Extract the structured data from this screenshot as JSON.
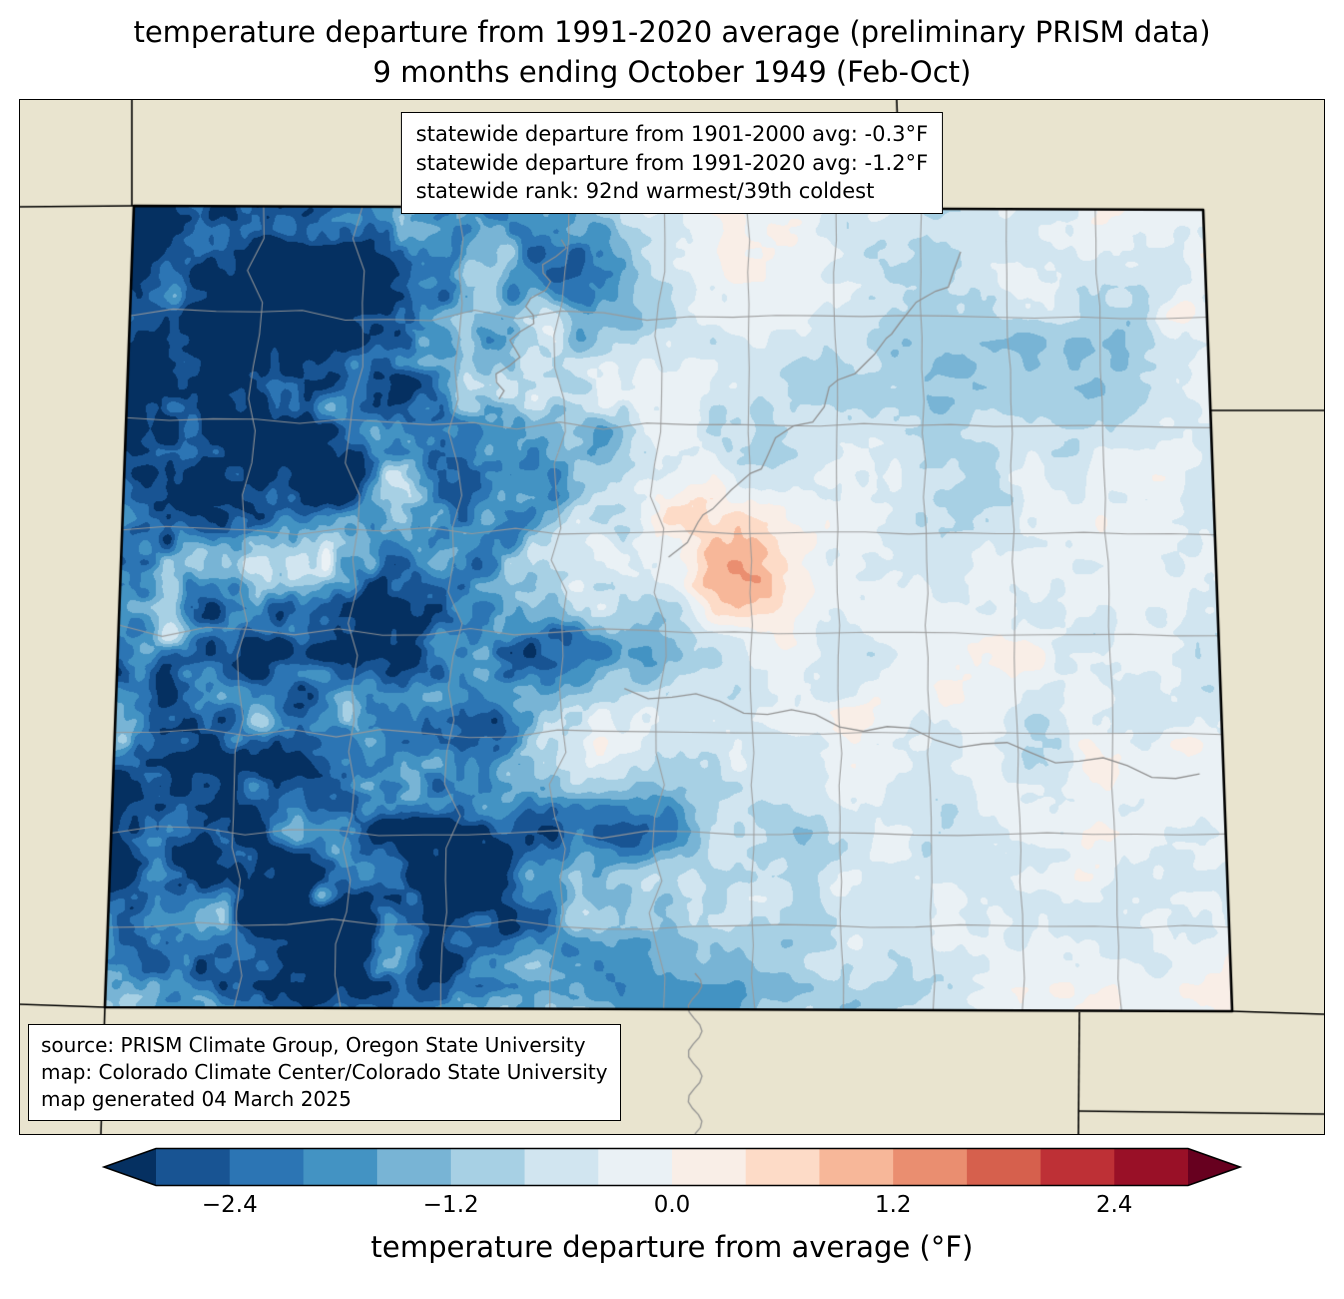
{
  "title": {
    "line1": "temperature departure from 1991-2020 average (preliminary PRISM data)",
    "line2": "9 months ending October 1949 (Feb-Oct)"
  },
  "stats_box": {
    "line1": "statewide departure from 1901-2000 avg: -0.3°F",
    "line2": "statewide departure from 1991-2020 avg: -1.2°F",
    "line3": "statewide rank: 92nd warmest/39th coldest"
  },
  "credits_box": {
    "line1": "source: PRISM Climate Group, Oregon State University",
    "line2": "map: Colorado Climate Center/Colorado State University",
    "line3": "map generated 04 March 2025"
  },
  "colorbar": {
    "label": "temperature departure from average (°F)",
    "ticks": [
      {
        "value": -2.4,
        "label": "−2.4"
      },
      {
        "value": -1.2,
        "label": "−1.2"
      },
      {
        "value": 0.0,
        "label": "0.0"
      },
      {
        "value": 1.2,
        "label": "1.2"
      },
      {
        "value": 2.4,
        "label": "2.4"
      }
    ],
    "vmin": -2.8,
    "vmax": 2.8,
    "band_step": 0.4,
    "under_color": "#053061",
    "over_color": "#67001f",
    "band_colors": [
      "#185493",
      "#2c75b4",
      "#4393c3",
      "#78b4d5",
      "#a7d0e4",
      "#d1e5f0",
      "#eaf1f5",
      "#f9eee7",
      "#fddbc7",
      "#f7b799",
      "#ea8e70",
      "#d6604d",
      "#be3036",
      "#991027"
    ]
  },
  "map": {
    "region": "Colorado",
    "background_color": "#e9e4cf",
    "state_border_color": "#000000",
    "county_line_color": "#999999",
    "river_color": "#8f8f8f"
  }
}
